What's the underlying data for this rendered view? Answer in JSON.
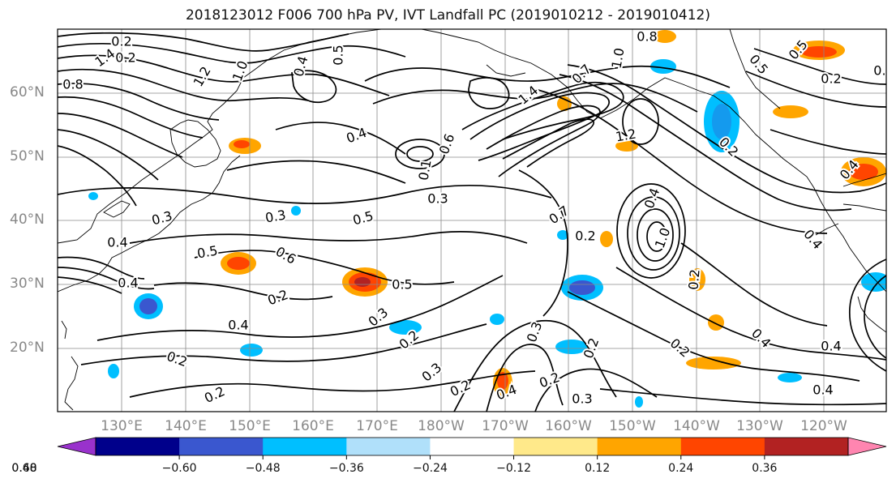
{
  "title": "2018123012 F006 700 hPa PV, IVT Landfall PC (2019010212 - 2019010412)",
  "lat_labels": [
    "60°N",
    "50°N",
    "40°N",
    "30°N",
    "20°N"
  ],
  "lon_labels": [
    "130°E",
    "140°E",
    "150°E",
    "160°E",
    "170°E",
    "180°W",
    "170°W",
    "160°W",
    "150°W",
    "140°W",
    "130°W",
    "120°W"
  ],
  "colorbar": {
    "colors": [
      "#9932cc",
      "#00008b",
      "#3a57cf",
      "#00bfff",
      "#b0e0fa",
      "#ffffff",
      "#ffe98a",
      "#ffa500",
      "#ff4500",
      "#b22222",
      "#ff85b0"
    ],
    "ticks": [
      "−0.60",
      "−0.48",
      "−0.36",
      "−0.24",
      "−0.12",
      "0.12",
      "0.24",
      "0.36",
      "0.48",
      "0.60"
    ]
  },
  "contour_labels": [
    "1.4",
    "0.2",
    "0.2",
    "1.2",
    "1.0",
    "0.5",
    "0.4",
    "0.8",
    "0.8",
    "0.7",
    "0.5",
    "1.4",
    "1.0",
    "0.4",
    "1.2",
    "0.6",
    "0.3",
    "0.5",
    "0.7",
    "0.1",
    "0.3",
    "0.3",
    "0.5",
    "0.2",
    "1.0",
    "0.4",
    "0.5",
    "0.6",
    "0.4",
    "0.2",
    "0.3",
    "0.2",
    "0.4",
    "0.2",
    "0.3",
    "0.2",
    "0.2",
    "0.2",
    "0.3",
    "0.3",
    "0.4",
    "0.2",
    "0.2",
    "0.2",
    "0.4",
    "0.4",
    "0.4",
    "0.4",
    "0.2",
    "0.2",
    "0.5",
    "0.2",
    "0.4",
    "0.4"
  ],
  "shading_colors": {
    "positive": [
      "#ffa500",
      "#ff4500",
      "#b22222"
    ],
    "negative": [
      "#00bfff",
      "#3a57cf"
    ]
  }
}
